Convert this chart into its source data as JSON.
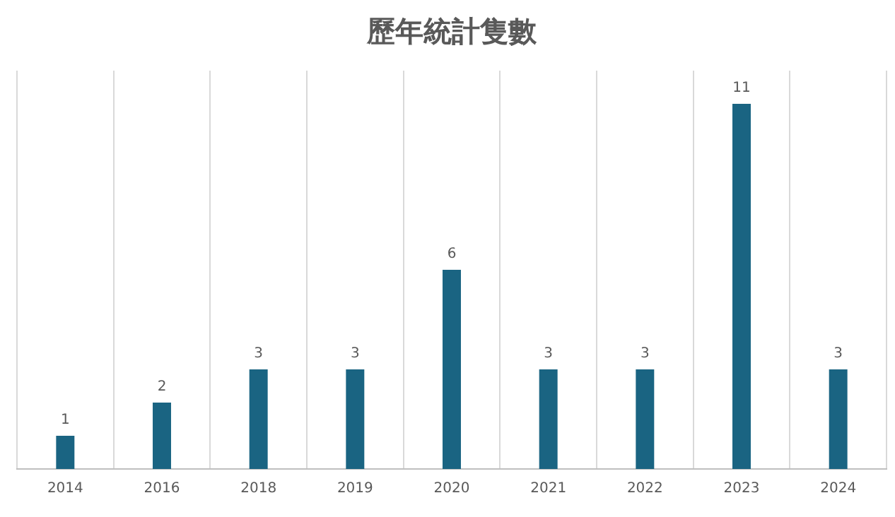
{
  "chart_data": {
    "type": "bar",
    "title": "歷年統計隻數",
    "categories": [
      "2014",
      "2016",
      "2018",
      "2019",
      "2020",
      "2021",
      "2022",
      "2023",
      "2024"
    ],
    "values": [
      1,
      2,
      3,
      3,
      6,
      3,
      3,
      11,
      3
    ],
    "color": "#1a6482",
    "data_labels": true,
    "grid": "x"
  }
}
